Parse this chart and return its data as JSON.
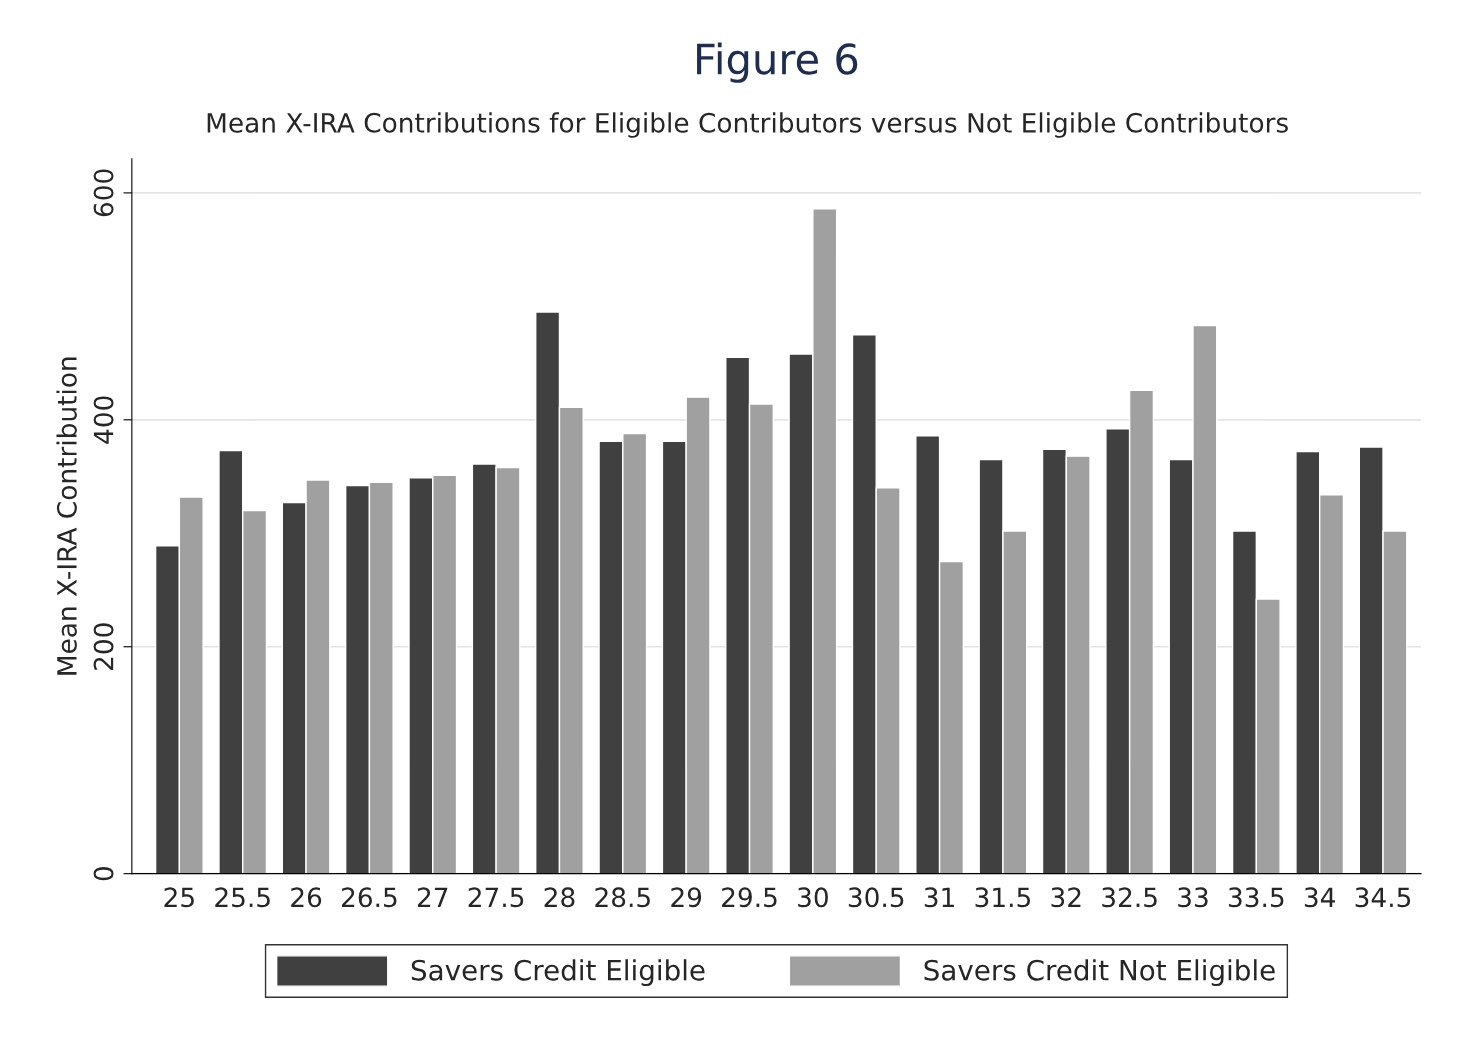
{
  "chart_data": {
    "type": "bar",
    "title": "Figure 6",
    "subtitle": "Mean X-IRA Contributions for Eligible Contributors versus Not Eligible Contributors",
    "ylabel": "Mean X-IRA Contribution",
    "categories": [
      "25",
      "25.5",
      "26",
      "26.5",
      "27",
      "27.5",
      "28",
      "28.5",
      "29",
      "29.5",
      "30",
      "30.5",
      "31",
      "31.5",
      "32",
      "32.5",
      "33",
      "33.5",
      "34",
      "34.5"
    ],
    "series": [
      {
        "name": "Savers Credit Eligible",
        "color": "#404040",
        "values": [
          289,
          373,
          327,
          342,
          349,
          361,
          495,
          381,
          381,
          455,
          458,
          475,
          386,
          365,
          374,
          392,
          365,
          302,
          372,
          376
        ]
      },
      {
        "name": "Savers Credit Not Eligible",
        "color": "#a0a0a0",
        "values": [
          332,
          320,
          347,
          345,
          351,
          358,
          411,
          388,
          420,
          414,
          586,
          340,
          275,
          302,
          368,
          426,
          483,
          242,
          334,
          302
        ]
      }
    ],
    "ylim": [
      0,
      630
    ],
    "yticks": [
      0,
      200,
      400,
      600
    ],
    "grid": "y",
    "legend": "bottom"
  }
}
